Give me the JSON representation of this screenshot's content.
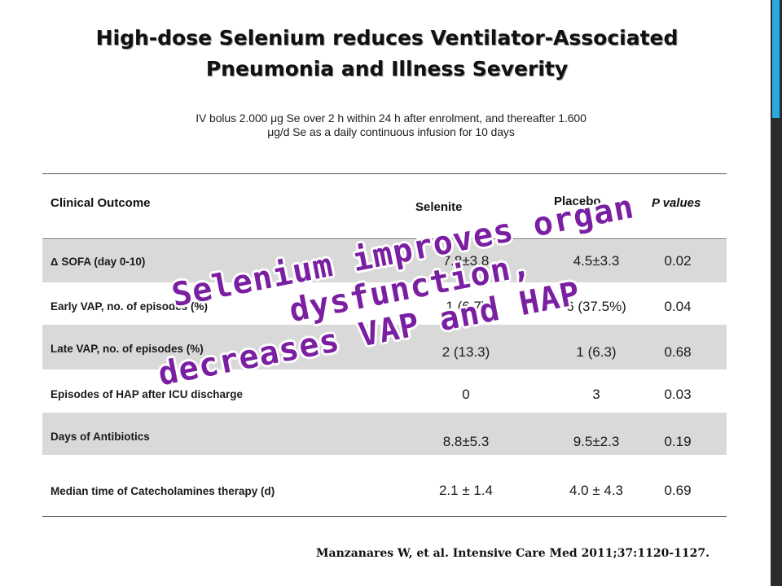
{
  "slide": {
    "title_line1": "High-dose Selenium reduces Ventilator-Associated",
    "title_line2": "Pneumonia and Illness Severity",
    "subtitle_line1": "IV bolus 2.000 μg  Se over 2 h within 24 h after enrolment, and thereafter 1.600",
    "subtitle_line2": "μg/d  Se as a daily continuous infusion for 10 days",
    "overlay_line1": "Selenium improves organ dysfunction,",
    "overlay_line2": "decreases VAP and HAP",
    "citation": "Manzanares W, et al. Intensive Care Med 2011;37:1120-1127.",
    "accent_color": "#29a9e0",
    "overlay_color": "#7b1fa2"
  },
  "table": {
    "headers": {
      "outcome": "Clinical Outcome",
      "selenite": "Selenite",
      "placebo": "Placebo",
      "p_values": "P values"
    },
    "rows": [
      {
        "delta_symbol": "Δ",
        "label": "SOFA (day 0-10)",
        "selenite": "7.8±3.8",
        "placebo": "4.5±3.3",
        "p": "0.02"
      },
      {
        "label": "Early VAP, no. of episodes (%)",
        "selenite": "1 (6.7)",
        "placebo": "6 (37.5%)",
        "p": "0.04"
      },
      {
        "label": "Late VAP, no. of episodes (%)",
        "selenite": "2 (13.3)",
        "placebo": "1 (6.3)",
        "p": "0.68"
      },
      {
        "label": "Episodes of HAP after ICU discharge",
        "selenite": "0",
        "placebo": "3",
        "p": "0.03"
      },
      {
        "label": "Days of Antibiotics",
        "selenite": "8.8±5.3",
        "placebo": "9.5±2.3",
        "p": "0.19"
      },
      {
        "label": "Median time of Catecholamines therapy (d)",
        "selenite": "2.1 ± 1.4",
        "placebo": "4.0 ± 4.3",
        "p": "0.69"
      }
    ]
  }
}
